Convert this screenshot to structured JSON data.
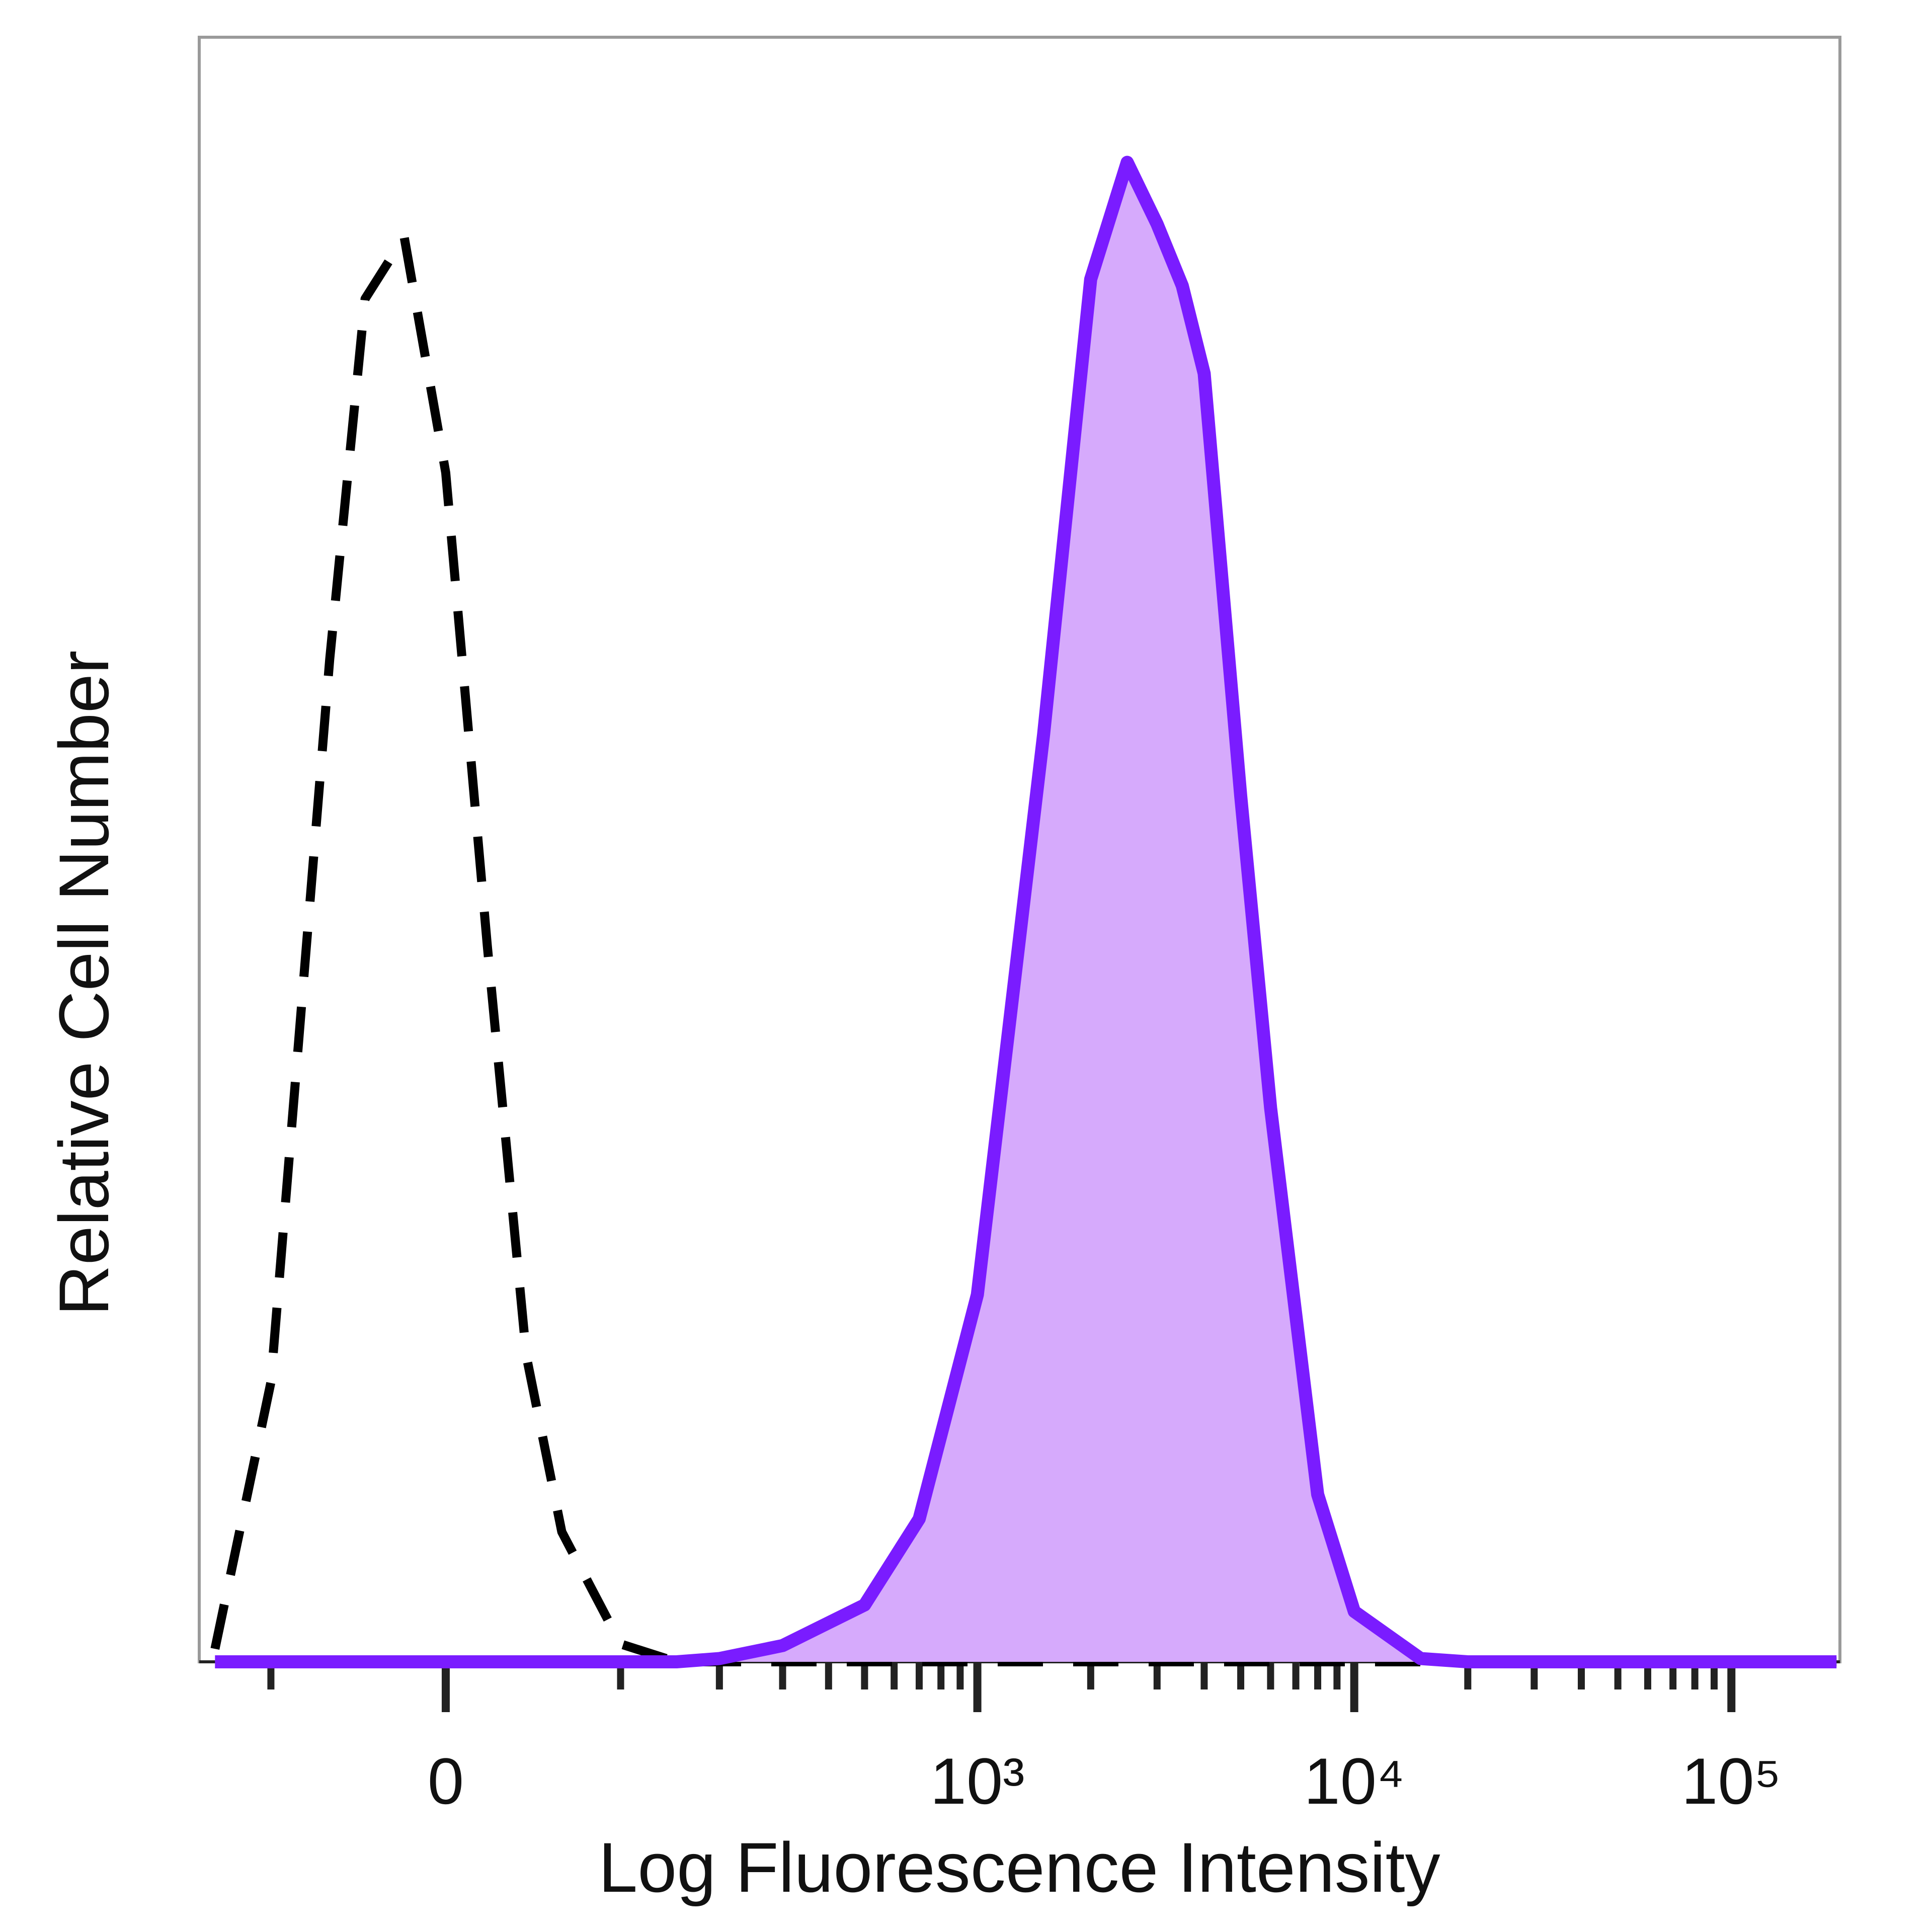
{
  "chart_data": {
    "type": "histogram-overlay",
    "xlabel": "Log Fluorescence Intensity",
    "ylabel": "Relative Cell Number",
    "xscale": "asinh",
    "xscale_cofactor": 78,
    "xlim": [
      -167,
      194000
    ],
    "xticks": [
      0,
      {
        "value": 1000,
        "label": "10³"
      },
      {
        "value": 10000,
        "label": "10⁴"
      },
      {
        "value": 100000,
        "label": "10⁵"
      }
    ],
    "xminorticks": [
      -100,
      100,
      200,
      300,
      400,
      500,
      600,
      700,
      800,
      900,
      2000,
      3000,
      4000,
      5000,
      6000,
      7000,
      8000,
      9000,
      20000,
      30000,
      40000,
      50000,
      60000,
      70000,
      80000,
      90000
    ],
    "ylim": [
      0,
      100
    ],
    "x": [
      -150,
      -100,
      -60,
      -40,
      -20,
      0,
      20,
      40,
      60,
      100,
      150,
      200,
      300,
      500,
      700,
      1000,
      1500,
      2000,
      2500,
      3000,
      3500,
      4000,
      5000,
      6000,
      8000,
      10000,
      15000,
      20000,
      50000,
      100000,
      190000
    ],
    "series": [
      {
        "color": "#000000",
        "dashed": true,
        "fill": null,
        "values": [
          0.8,
          17.2,
          61.7,
          83.9,
          87.7,
          73.2,
          44.1,
          18.8,
          8.0,
          1.1,
          0,
          0,
          0,
          0,
          0,
          0,
          0,
          0,
          0,
          0,
          0,
          0,
          0,
          0,
          0,
          0,
          0,
          0,
          0,
          0,
          0
        ]
      },
      {
        "color": "#7a1cff",
        "dashed": false,
        "fill": "#d6aafc",
        "values": [
          0,
          0,
          0,
          0,
          0,
          0,
          0,
          0,
          0,
          0,
          0,
          0.2,
          1.0,
          3.5,
          8.8,
          22.6,
          57.1,
          85.1,
          92.3,
          88.5,
          84.7,
          79.3,
          53.3,
          34.1,
          10.3,
          3.1,
          0.2,
          0,
          0,
          0,
          0
        ]
      }
    ]
  }
}
